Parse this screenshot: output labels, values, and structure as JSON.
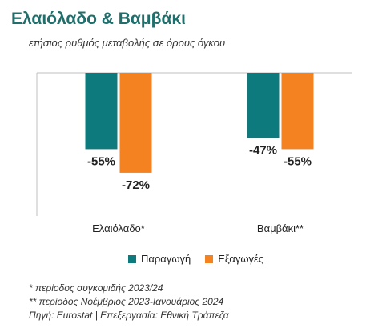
{
  "title": "Ελαιόλαδο & Βαμβάκι",
  "subtitle": "ετήσιος ρυθμός μεταβολής σε όρους όγκου",
  "colors": {
    "title": "#1f6f6c",
    "production": "#0d7a7e",
    "exports": "#f58220"
  },
  "chart_data": {
    "type": "bar",
    "categories": [
      "Ελαιόλαδο*",
      "Βαμβάκι**"
    ],
    "series": [
      {
        "name": "Παραγωγή",
        "values": [
          -55,
          -47
        ],
        "labels": [
          "-55%",
          "-47%"
        ]
      },
      {
        "name": "Εξαγωγές",
        "values": [
          -72,
          -55
        ],
        "labels": [
          "-72%",
          "-55%"
        ]
      }
    ],
    "ylim": [
      -100,
      0
    ],
    "grid": false,
    "legend_position": "bottom"
  },
  "legend": [
    "Παραγωγή",
    "Εξαγωγές"
  ],
  "notes": [
    "* περίοδος συγκομιδής 2023/24",
    "** περίοδος Νοέμβριος 2023-Ιανουάριος 2024",
    "Πηγή: Eurostat | Επεξεργασία: Εθνική Τράπεζα"
  ]
}
